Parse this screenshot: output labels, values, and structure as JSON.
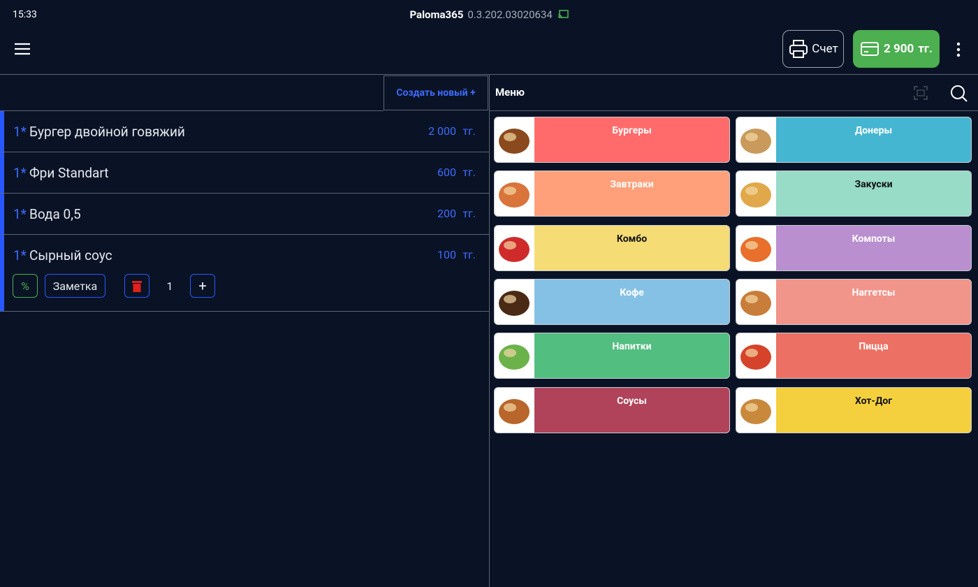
{
  "status_bar": {
    "time": "15:33",
    "app_name": "Paloma365",
    "version": "0.3.202.03020634"
  },
  "toolbar": {
    "print_label": "Счет",
    "total": "2 900",
    "total_currency": "тг."
  },
  "order": {
    "create_button": "Создать новый +",
    "items": [
      {
        "qty": "1*",
        "name": "Бургер двойной говяжий",
        "price": "2 000",
        "currency": "тг."
      },
      {
        "qty": "1*",
        "name": "Фри Standart",
        "price": "600",
        "currency": "тг."
      },
      {
        "qty": "1*",
        "name": "Вода 0,5",
        "price": "200",
        "currency": "тг."
      },
      {
        "qty": "1*",
        "name": "Сырный соус",
        "price": "100",
        "currency": "тг."
      }
    ],
    "controls": {
      "discount": "%",
      "note": "Заметка",
      "count": "1",
      "plus": "+"
    }
  },
  "menu": {
    "title": "Меню",
    "categories": [
      {
        "label": "Бургеры",
        "color": "#ff6b6b",
        "text_color": "#ffffff"
      },
      {
        "label": "Донеры",
        "color": "#45b6d1",
        "text_color": "#ffffff"
      },
      {
        "label": "Завтраки",
        "color": "#ffa07a",
        "text_color": "#ffffff"
      },
      {
        "label": "Закуски",
        "color": "#98dcc8",
        "text_color": "#111111"
      },
      {
        "label": "Комбо",
        "color": "#f5dc74",
        "text_color": "#111111"
      },
      {
        "label": "Компоты",
        "color": "#b98fd0",
        "text_color": "#ffffff"
      },
      {
        "label": "Кофе",
        "color": "#85c1e5",
        "text_color": "#ffffff"
      },
      {
        "label": "Наггетсы",
        "color": "#f1948a",
        "text_color": "#ffffff"
      },
      {
        "label": "Напитки",
        "color": "#52be80",
        "text_color": "#ffffff"
      },
      {
        "label": "Пицца",
        "color": "#ec7063",
        "text_color": "#ffffff"
      },
      {
        "label": "Соусы",
        "color": "#b0435a",
        "text_color": "#ffffff"
      },
      {
        "label": "Хот-Дог",
        "color": "#f4d03f",
        "text_color": "#111111"
      }
    ]
  }
}
